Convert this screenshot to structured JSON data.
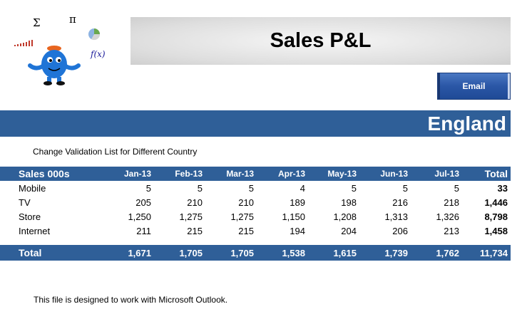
{
  "logo": {
    "symbols": [
      "Σ",
      "π",
      "f(x)"
    ]
  },
  "header": {
    "title": "Sales P&L"
  },
  "actions": {
    "email_label": "Email"
  },
  "country": "England",
  "validation_note": "Change Validation List for Different Country",
  "table": {
    "corner_label": "Sales 000s",
    "months": [
      "Jan-13",
      "Feb-13",
      "Mar-13",
      "Apr-13",
      "May-13",
      "Jun-13",
      "Jul-13"
    ],
    "total_label": "Total",
    "rows": [
      {
        "label": "Mobile",
        "values": [
          "5",
          "5",
          "5",
          "4",
          "5",
          "5",
          "5"
        ],
        "total": "33"
      },
      {
        "label": "TV",
        "values": [
          "205",
          "210",
          "210",
          "189",
          "198",
          "216",
          "218"
        ],
        "total": "1,446"
      },
      {
        "label": "Store",
        "values": [
          "1,250",
          "1,275",
          "1,275",
          "1,150",
          "1,208",
          "1,313",
          "1,326"
        ],
        "total": "8,798"
      },
      {
        "label": "Internet",
        "values": [
          "211",
          "215",
          "215",
          "194",
          "204",
          "206",
          "213"
        ],
        "total": "1,458"
      }
    ],
    "totals": {
      "label": "Total",
      "values": [
        "1,671",
        "1,705",
        "1,705",
        "1,538",
        "1,615",
        "1,739",
        "1,762"
      ],
      "total": "11,734"
    }
  },
  "footer_note": "This file is designed to work with Microsoft Outlook.",
  "colors": {
    "band": "#2f5f98",
    "button": "#2a56a6",
    "mascot": "#1f74d6"
  }
}
